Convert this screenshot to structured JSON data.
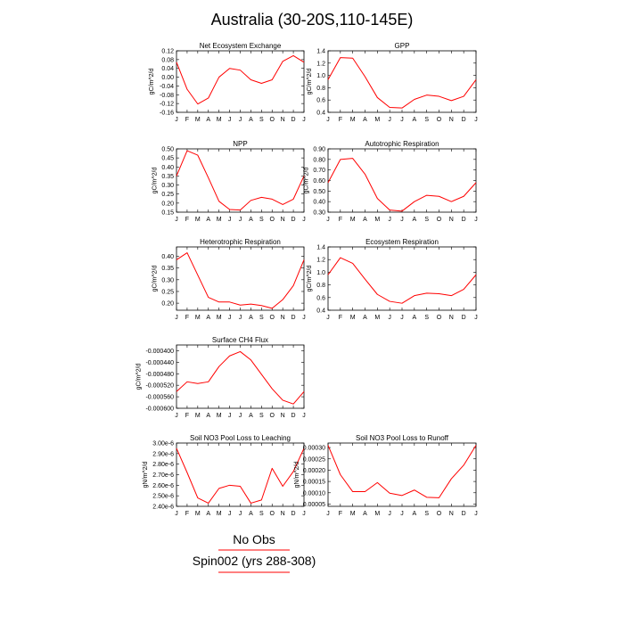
{
  "figure": {
    "title": "Australia (30-20S,110-145E)"
  },
  "months": [
    "J",
    "F",
    "M",
    "A",
    "M",
    "J",
    "J",
    "A",
    "S",
    "O",
    "N",
    "D",
    "J"
  ],
  "legend": {
    "entries": [
      {
        "label": "No Obs",
        "color": "#ff0000"
      },
      {
        "label": "Spin002 (yrs 288-308)",
        "color": "#ff0000"
      }
    ]
  },
  "chart_data": [
    {
      "type": "line",
      "title": "Net Ecosystem Exchange",
      "ylabel": "gC/m^2/d",
      "ylim": [
        -0.16,
        0.12
      ],
      "yticks": [
        "-0.16",
        "-0.12",
        "-0.08",
        "-0.04",
        "0.00",
        "0.04",
        "0.08",
        "0.12"
      ],
      "yvals": [
        -0.16,
        -0.12,
        -0.08,
        -0.04,
        0.0,
        0.04,
        0.08,
        0.12
      ],
      "series": [
        {
          "color": "#ff0000",
          "values": [
            0.068,
            -0.055,
            -0.122,
            -0.095,
            0.0,
            0.04,
            0.032,
            -0.012,
            -0.028,
            -0.012,
            0.072,
            0.098,
            0.068
          ]
        }
      ]
    },
    {
      "type": "line",
      "title": "GPP",
      "ylabel": "gC/m^2/d",
      "ylim": [
        0.4,
        1.4
      ],
      "yticks": [
        "0.4",
        "0.6",
        "0.8",
        "1.0",
        "1.2",
        "1.4"
      ],
      "yvals": [
        0.4,
        0.6,
        0.8,
        1.0,
        1.2,
        1.4
      ],
      "series": [
        {
          "color": "#ff0000",
          "values": [
            0.93,
            1.29,
            1.28,
            0.98,
            0.64,
            0.48,
            0.47,
            0.61,
            0.68,
            0.66,
            0.59,
            0.66,
            0.93
          ]
        }
      ]
    },
    {
      "type": "line",
      "title": "NPP",
      "ylabel": "gC/m^2/d",
      "ylim": [
        0.15,
        0.5
      ],
      "yticks": [
        "0.15",
        "0.20",
        "0.25",
        "0.30",
        "0.35",
        "0.40",
        "0.45",
        "0.50"
      ],
      "yvals": [
        0.15,
        0.2,
        0.25,
        0.3,
        0.35,
        0.4,
        0.45,
        0.5
      ],
      "series": [
        {
          "color": "#ff0000",
          "values": [
            0.35,
            0.49,
            0.465,
            0.34,
            0.21,
            0.165,
            0.162,
            0.215,
            0.232,
            0.222,
            0.192,
            0.222,
            0.35
          ]
        }
      ]
    },
    {
      "type": "line",
      "title": "Autotrophic Respiration",
      "ylabel": "gC/m^2/d",
      "ylim": [
        0.3,
        0.9
      ],
      "yticks": [
        "0.30",
        "0.40",
        "0.50",
        "0.60",
        "0.70",
        "0.80",
        "0.90"
      ],
      "yvals": [
        0.3,
        0.4,
        0.5,
        0.6,
        0.7,
        0.8,
        0.9
      ],
      "series": [
        {
          "color": "#ff0000",
          "values": [
            0.58,
            0.8,
            0.81,
            0.66,
            0.43,
            0.32,
            0.31,
            0.4,
            0.46,
            0.45,
            0.4,
            0.45,
            0.58
          ]
        }
      ]
    },
    {
      "type": "line",
      "title": "Heterotrophic Respiration",
      "ylabel": "gC/m^2/d",
      "ylim": [
        0.17,
        0.44
      ],
      "yticks": [
        "0.20",
        "0.25",
        "0.30",
        "0.35",
        "0.40"
      ],
      "yvals": [
        0.2,
        0.25,
        0.3,
        0.35,
        0.4
      ],
      "series": [
        {
          "color": "#ff0000",
          "values": [
            0.385,
            0.415,
            0.32,
            0.225,
            0.205,
            0.205,
            0.192,
            0.196,
            0.19,
            0.178,
            0.215,
            0.275,
            0.385
          ]
        }
      ]
    },
    {
      "type": "line",
      "title": "Ecosystem Respiration",
      "ylabel": "gC/m^2/d",
      "ylim": [
        0.4,
        1.4
      ],
      "yticks": [
        "0.4",
        "0.6",
        "0.8",
        "1.0",
        "1.2",
        "1.4"
      ],
      "yvals": [
        0.4,
        0.6,
        0.8,
        1.0,
        1.2,
        1.4
      ],
      "series": [
        {
          "color": "#ff0000",
          "values": [
            0.96,
            1.23,
            1.14,
            0.89,
            0.65,
            0.54,
            0.51,
            0.63,
            0.67,
            0.66,
            0.63,
            0.73,
            0.96
          ]
        }
      ]
    },
    {
      "type": "line",
      "title": "Surface CH4 Flux",
      "ylabel": "gC/m^2/d",
      "ylim": [
        -0.0006,
        -0.00038
      ],
      "yticks": [
        "-0.000400",
        "-0.000440",
        "-0.000480",
        "-0.000520",
        "-0.000560",
        "-0.000600"
      ],
      "yvals": [
        -0.0004,
        -0.00044,
        -0.00048,
        -0.00052,
        -0.00056,
        -0.0006
      ],
      "series": [
        {
          "color": "#ff0000",
          "values": [
            -0.000542,
            -0.000508,
            -0.000514,
            -0.000508,
            -0.000455,
            -0.000418,
            -0.000403,
            -0.000432,
            -0.000482,
            -0.000532,
            -0.000572,
            -0.000585,
            -0.000542
          ]
        }
      ]
    },
    {
      "type": "line",
      "title": "Soil NO3 Pool Loss to Leaching",
      "ylabel": "gN/m^2/d",
      "ylim": [
        2.4e-06,
        3e-06
      ],
      "yticks": [
        "2.40e-6",
        "2.50e-6",
        "2.60e-6",
        "2.70e-6",
        "2.80e-6",
        "2.90e-6",
        "3.00e-6"
      ],
      "yvals": [
        2.4e-06,
        2.5e-06,
        2.6e-06,
        2.7e-06,
        2.8e-06,
        2.9e-06,
        3e-06
      ],
      "series": [
        {
          "color": "#ff0000",
          "values": [
            2.95e-06,
            2.72e-06,
            2.48e-06,
            2.43e-06,
            2.57e-06,
            2.6e-06,
            2.59e-06,
            2.43e-06,
            2.46e-06,
            2.76e-06,
            2.59e-06,
            2.73e-06,
            2.95e-06
          ]
        }
      ]
    },
    {
      "type": "line",
      "title": "Soil NO3 Pool Loss to Runoff",
      "ylabel": "gN/m^2/d",
      "ylim": [
        4e-05,
        0.00032
      ],
      "yticks": [
        "0.00005",
        "0.00010",
        "0.00015",
        "0.00020",
        "0.00025",
        "0.00030"
      ],
      "yvals": [
        5e-05,
        0.0001,
        0.00015,
        0.0002,
        0.00025,
        0.0003
      ],
      "series": [
        {
          "color": "#ff0000",
          "values": [
            0.00031,
            0.00018,
            0.000105,
            0.000105,
            0.000145,
            9.8e-05,
            8.8e-05,
            0.000112,
            8e-05,
            7.8e-05,
            0.000162,
            0.000222,
            0.00031
          ]
        }
      ]
    }
  ]
}
